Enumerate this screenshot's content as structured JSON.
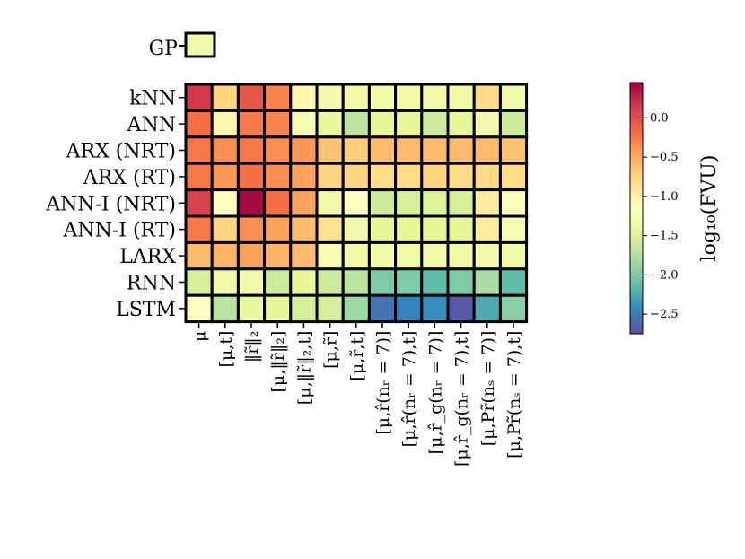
{
  "chart_data": {
    "type": "heatmap",
    "title": "",
    "rows": [
      "kNN",
      "ANN",
      "ARX (NRT)",
      "ARX (RT)",
      "ANN-I (NRT)",
      "ANN-I (RT)",
      "LARX",
      "RNN",
      "LSTM"
    ],
    "columns": [
      "μ",
      "[μ,t]",
      "‖r̃‖₂",
      "[μ,‖r̃‖₂]",
      "[μ,‖r̃‖₂,t]",
      "[μ,r̃]",
      "[μ,r̃,t]",
      "[μ,r̂(nᵣ = 7)]",
      "[μ,r̂(nᵣ = 7),t]",
      "[μ,r̂_g(nᵣ = 7)]",
      "[μ,r̂_g(nᵣ = 7),t]",
      "[μ,Pr̃(nₛ = 7)]",
      "[μ,Pr̃(nₛ = 7),t]"
    ],
    "values": [
      [
        0.15,
        -0.75,
        -0.05,
        -0.3,
        -1.05,
        -1.3,
        -1.35,
        -1.35,
        -1.35,
        -1.35,
        -1.35,
        -0.8,
        -1.35
      ],
      [
        -0.2,
        -1.05,
        -0.25,
        -0.3,
        -1.25,
        -1.4,
        -1.7,
        -1.45,
        -1.45,
        -1.6,
        -1.45,
        -1.3,
        -1.6
      ],
      [
        -0.25,
        -0.35,
        -0.25,
        -0.35,
        -0.4,
        -0.65,
        -0.7,
        -0.6,
        -0.6,
        -0.6,
        -0.6,
        -0.6,
        -0.65
      ],
      [
        -0.25,
        -0.4,
        -0.2,
        -0.35,
        -0.45,
        -0.75,
        -0.75,
        -0.8,
        -0.8,
        -0.75,
        -0.8,
        -0.8,
        -0.8
      ],
      [
        0.1,
        -1.15,
        0.4,
        -0.2,
        -0.45,
        -1.35,
        -1.15,
        -1.6,
        -1.55,
        -1.5,
        -1.55,
        -0.95,
        -1.2
      ],
      [
        -0.25,
        -0.75,
        -0.35,
        -0.45,
        -0.6,
        -0.85,
        -1.3,
        -1.45,
        -1.45,
        -1.45,
        -1.45,
        -0.95,
        -1.25
      ],
      [
        -0.6,
        -0.55,
        -0.45,
        -0.55,
        -0.6,
        -1.25,
        -1.35,
        -1.35,
        -1.35,
        -1.3,
        -1.35,
        -1.3,
        -1.35
      ],
      [
        -1.55,
        -1.35,
        -1.3,
        -1.6,
        -1.45,
        -1.6,
        -1.7,
        -2.0,
        -2.0,
        -2.15,
        -2.0,
        -1.8,
        -2.15
      ],
      [
        -1.15,
        -1.7,
        -1.4,
        -1.45,
        -1.55,
        -1.55,
        -1.85,
        -2.55,
        -2.45,
        -2.4,
        -2.7,
        -2.25,
        -1.95
      ]
    ],
    "colorbar": {
      "label": "log₁₀(FVU)",
      "range": [
        -2.75,
        0.45
      ],
      "ticks": [
        0.0,
        -0.5,
        -1.0,
        -1.5,
        -2.0,
        -2.5
      ],
      "tick_labels": [
        "0.0",
        "−0.5",
        "−1.0",
        "−1.5",
        "−2.0",
        "−2.5"
      ],
      "colormap": "Spectral"
    },
    "gp": {
      "label": "GP",
      "value": -1.3
    }
  }
}
